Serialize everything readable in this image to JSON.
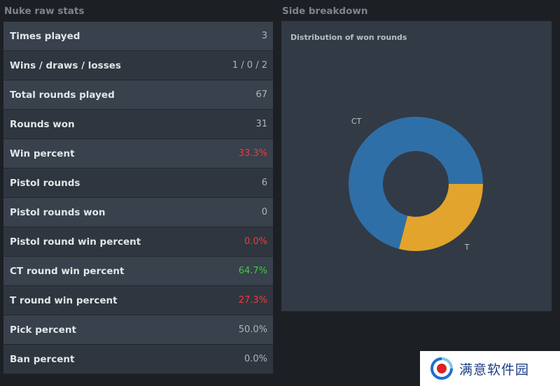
{
  "left_panel": {
    "title": "Nuke raw stats",
    "rows": [
      {
        "label": "Times played",
        "value": "3",
        "color": "#aeb4ba"
      },
      {
        "label": "Wins / draws / losses",
        "value": "1 / 0 / 2",
        "color": "#aeb4ba"
      },
      {
        "label": "Total rounds played",
        "value": "67",
        "color": "#aeb4ba"
      },
      {
        "label": "Rounds won",
        "value": "31",
        "color": "#aeb4ba"
      },
      {
        "label": "Win percent",
        "value": "33.3%",
        "color": "#f03a3a"
      },
      {
        "label": "Pistol rounds",
        "value": "6",
        "color": "#aeb4ba"
      },
      {
        "label": "Pistol rounds won",
        "value": "0",
        "color": "#aeb4ba"
      },
      {
        "label": "Pistol round win percent",
        "value": "0.0%",
        "color": "#f03a3a"
      },
      {
        "label": "CT round win percent",
        "value": "64.7%",
        "color": "#3fcb3f"
      },
      {
        "label": "T round win percent",
        "value": "27.3%",
        "color": "#f03a3a"
      },
      {
        "label": "Pick percent",
        "value": "50.0%",
        "color": "#aeb4ba"
      },
      {
        "label": "Ban percent",
        "value": "0.0%",
        "color": "#aeb4ba"
      }
    ]
  },
  "right_panel": {
    "title": "Side breakdown",
    "chart_title": "Distribution of won rounds"
  },
  "chart_data": {
    "type": "pie",
    "title": "Distribution of won rounds",
    "categories": [
      "CT",
      "T"
    ],
    "values": [
      22,
      9
    ],
    "colors": [
      "#2f6fa7",
      "#e2a42c"
    ],
    "donut": true
  },
  "watermark": {
    "text": "满意软件园",
    "logo": "circle-logo-icon"
  }
}
